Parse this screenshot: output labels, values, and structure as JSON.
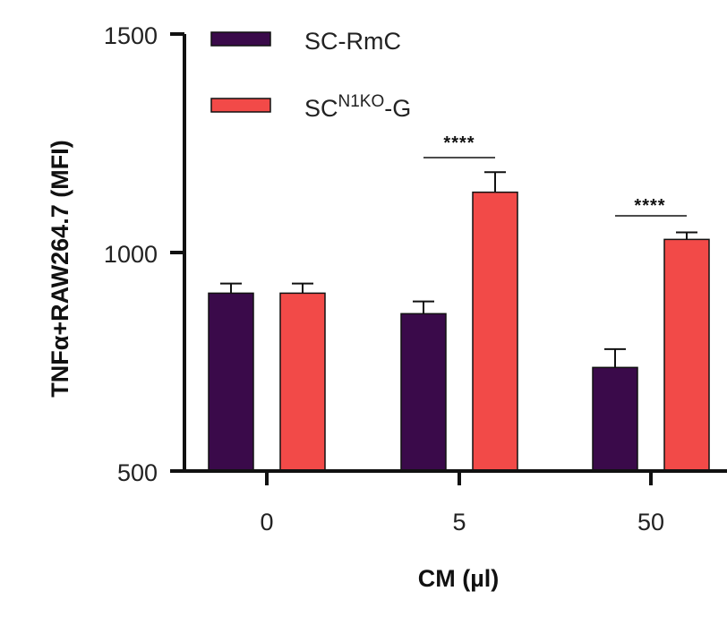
{
  "chart_data": {
    "type": "bar",
    "xlabel": "CM (µl)",
    "ylabel": "TNFα+RAW264.7 (MFI)",
    "ylim": [
      500,
      1500
    ],
    "yticks": [
      "500",
      "1000",
      "1500"
    ],
    "categories": [
      "0",
      "5",
      "50"
    ],
    "series": [
      {
        "name": "SC-RmC",
        "color": "#3a0a4a",
        "values": [
          907,
          860,
          737
        ],
        "errors": [
          22,
          28,
          42
        ]
      },
      {
        "name_parts": [
          "SC",
          "N1KO",
          "-G"
        ],
        "color": "#f24a48",
        "values": [
          907,
          1138,
          1030
        ],
        "errors": [
          22,
          46,
          16
        ]
      }
    ],
    "significance": [
      {
        "category": "5",
        "label": "****"
      },
      {
        "category": "50",
        "label": "****"
      }
    ],
    "legend_position": "top-left",
    "grid": false
  }
}
